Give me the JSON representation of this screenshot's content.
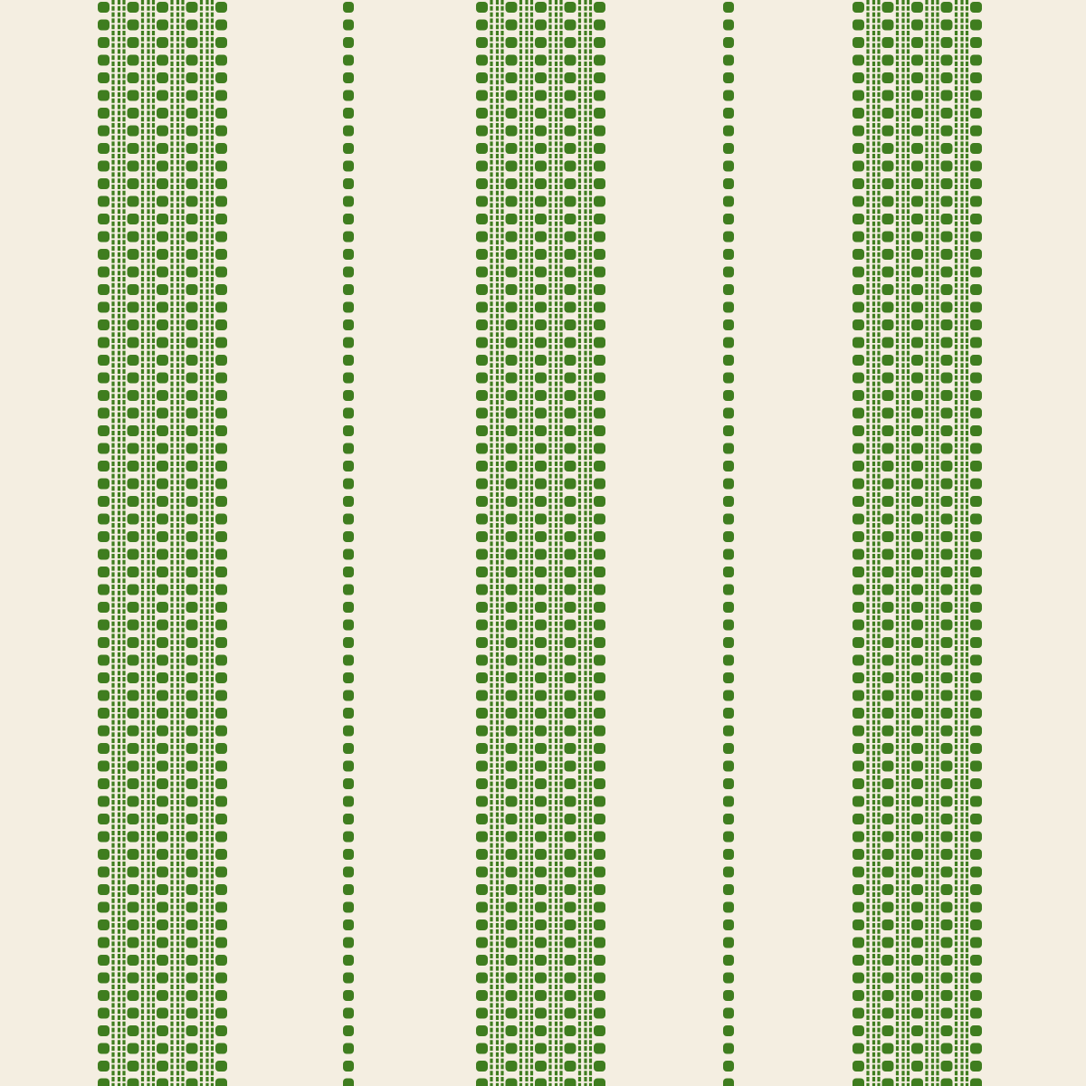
{
  "image": {
    "subject": "woven-stripe-fabric",
    "colors": {
      "background": "#f4eee1",
      "stripe": "#3f7d1f",
      "stripe_light": "#5a9630"
    },
    "wide_band_count": 3,
    "thin_dotted_line_count": 2
  }
}
